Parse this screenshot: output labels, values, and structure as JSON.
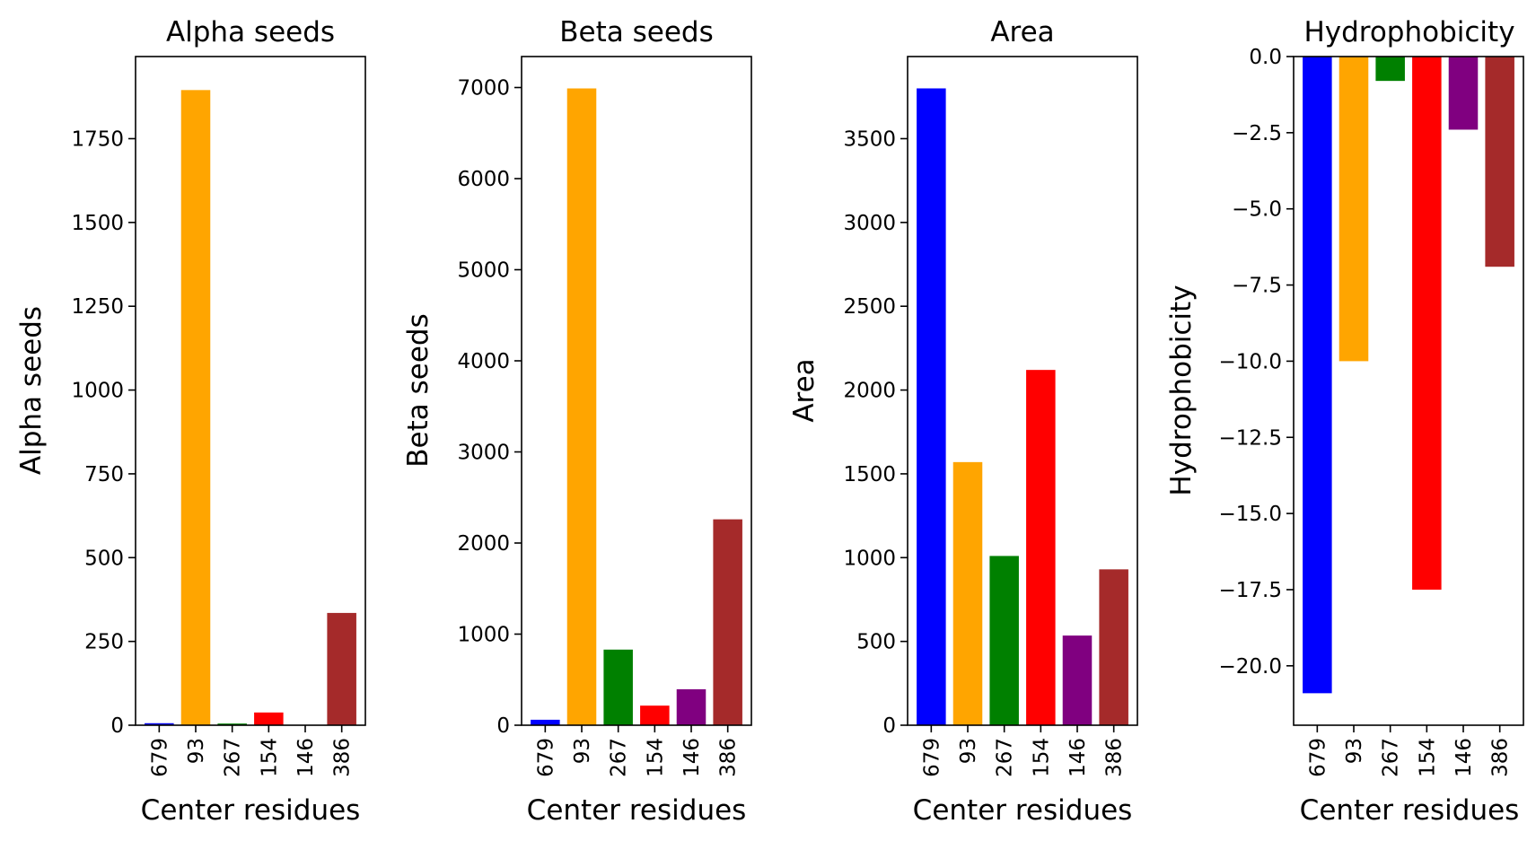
{
  "chart_data": [
    {
      "type": "bar",
      "title": "Alpha seeds",
      "xlabel": "Center residues",
      "ylabel": "Alpha seeds",
      "categories": [
        "679",
        "93",
        "267",
        "154",
        "146",
        "386"
      ],
      "values": [
        6,
        1895,
        5,
        38,
        0,
        335
      ],
      "colors": [
        "#0000ff",
        "#ffa500",
        "#008000",
        "#ff0000",
        "#800080",
        "#a52a2a"
      ],
      "ylim": [
        0,
        1995
      ],
      "yticks": [
        0,
        250,
        500,
        750,
        1000,
        1250,
        1500,
        1750
      ],
      "ytick_labels": [
        "0",
        "250",
        "500",
        "750",
        "1000",
        "1250",
        "1500",
        "1750"
      ]
    },
    {
      "type": "bar",
      "title": "Beta seeds",
      "xlabel": "Center residues",
      "ylabel": "Beta seeds",
      "categories": [
        "679",
        "93",
        "267",
        "154",
        "146",
        "386"
      ],
      "values": [
        60,
        6990,
        830,
        215,
        395,
        2260
      ],
      "colors": [
        "#0000ff",
        "#ffa500",
        "#008000",
        "#ff0000",
        "#800080",
        "#a52a2a"
      ],
      "ylim": [
        0,
        7340
      ],
      "yticks": [
        0,
        1000,
        2000,
        3000,
        4000,
        5000,
        6000,
        7000
      ],
      "ytick_labels": [
        "0",
        "1000",
        "2000",
        "3000",
        "4000",
        "5000",
        "6000",
        "7000"
      ]
    },
    {
      "type": "bar",
      "title": "Area",
      "xlabel": "Center residues",
      "ylabel": "Area",
      "categories": [
        "679",
        "93",
        "267",
        "154",
        "146",
        "386"
      ],
      "values": [
        3800,
        1570,
        1010,
        2120,
        535,
        930
      ],
      "colors": [
        "#0000ff",
        "#ffa500",
        "#008000",
        "#ff0000",
        "#800080",
        "#a52a2a"
      ],
      "ylim": [
        0,
        3990
      ],
      "yticks": [
        0,
        500,
        1000,
        1500,
        2000,
        2500,
        3000,
        3500
      ],
      "ytick_labels": [
        "0",
        "500",
        "1000",
        "1500",
        "2000",
        "2500",
        "3000",
        "3500"
      ]
    },
    {
      "type": "bar",
      "title": "Hydrophobicity",
      "xlabel": "Center residues",
      "ylabel": "Hydrophobicity",
      "categories": [
        "679",
        "93",
        "267",
        "154",
        "146",
        "386"
      ],
      "values": [
        -20.9,
        -10.0,
        -0.8,
        -17.5,
        -2.4,
        -6.9
      ],
      "colors": [
        "#0000ff",
        "#ffa500",
        "#008000",
        "#ff0000",
        "#800080",
        "#a52a2a"
      ],
      "ylim": [
        -21.95,
        0
      ],
      "yticks": [
        0,
        -2.5,
        -5,
        -7.5,
        -10,
        -12.5,
        -15,
        -17.5,
        -20
      ],
      "ytick_labels": [
        "0.0",
        "−2.5",
        "−5.0",
        "−7.5",
        "−10.0",
        "−12.5",
        "−15.0",
        "−17.5",
        "−20.0"
      ]
    }
  ]
}
